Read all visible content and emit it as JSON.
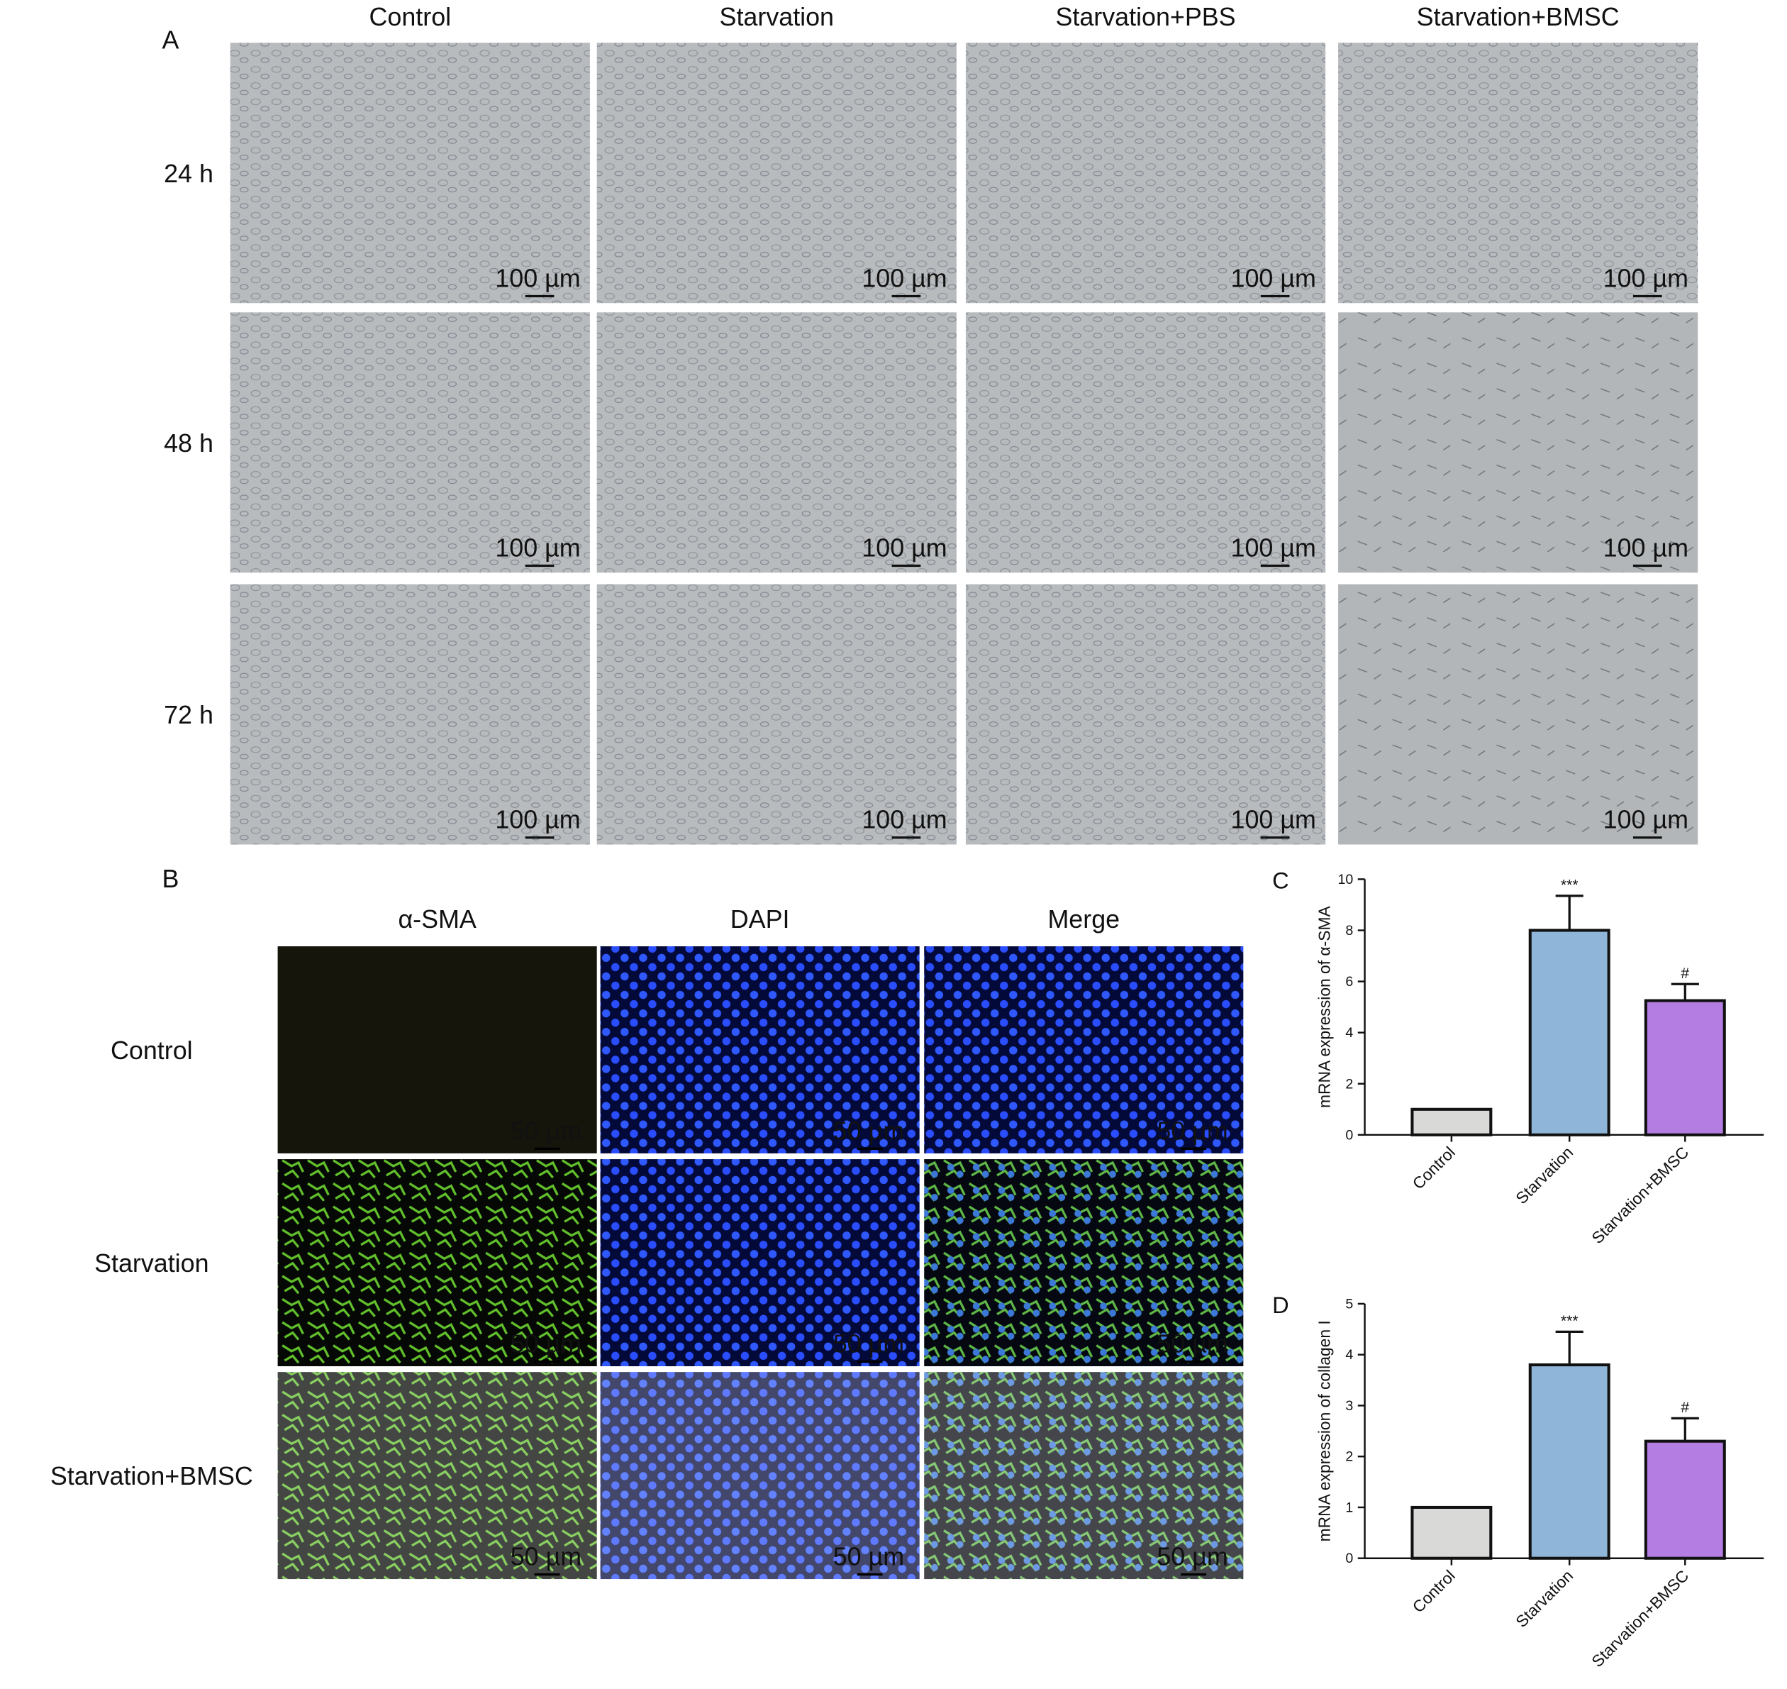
{
  "panel_a": {
    "label": "A",
    "columns": [
      "Control",
      "Starvation",
      "Starvation+PBS",
      "Starvation+BMSC"
    ],
    "rows": [
      "24 h",
      "48 h",
      "72 h"
    ],
    "scale_bar": "100 µm"
  },
  "panel_b": {
    "label": "B",
    "columns": [
      "α-SMA",
      "DAPI",
      "Merge"
    ],
    "rows": [
      "Control",
      "Starvation",
      "Starvation+BMSC"
    ],
    "scale_bar": "50 µm"
  },
  "chart_data": [
    {
      "type": "bar",
      "panel_label": "C",
      "y_label": "mRNA expression of α-SMA",
      "categories": [
        "Control",
        "Starvation",
        "Starvation+BMSC"
      ],
      "values": [
        1,
        8,
        5.25
      ],
      "errors": [
        0,
        1.35,
        0.65
      ],
      "annotations": [
        null,
        "***",
        "#"
      ],
      "colors": [
        "#d9dad7",
        "#8fb5d8",
        "#b47de2"
      ],
      "ylim": [
        0,
        10
      ],
      "yticks": [
        0,
        2,
        4,
        6,
        8,
        10
      ]
    },
    {
      "type": "bar",
      "panel_label": "D",
      "y_label": "mRNA expression of collagen I",
      "categories": [
        "Control",
        "Starvation",
        "Starvation+BMSC"
      ],
      "values": [
        1,
        3.8,
        2.3
      ],
      "errors": [
        0,
        0.65,
        0.45
      ],
      "annotations": [
        null,
        "***",
        "#"
      ],
      "colors": [
        "#d9dad7",
        "#8fb5d8",
        "#b47de2"
      ],
      "ylim": [
        0,
        5
      ],
      "yticks": [
        0,
        1,
        2,
        3,
        4,
        5
      ]
    }
  ]
}
